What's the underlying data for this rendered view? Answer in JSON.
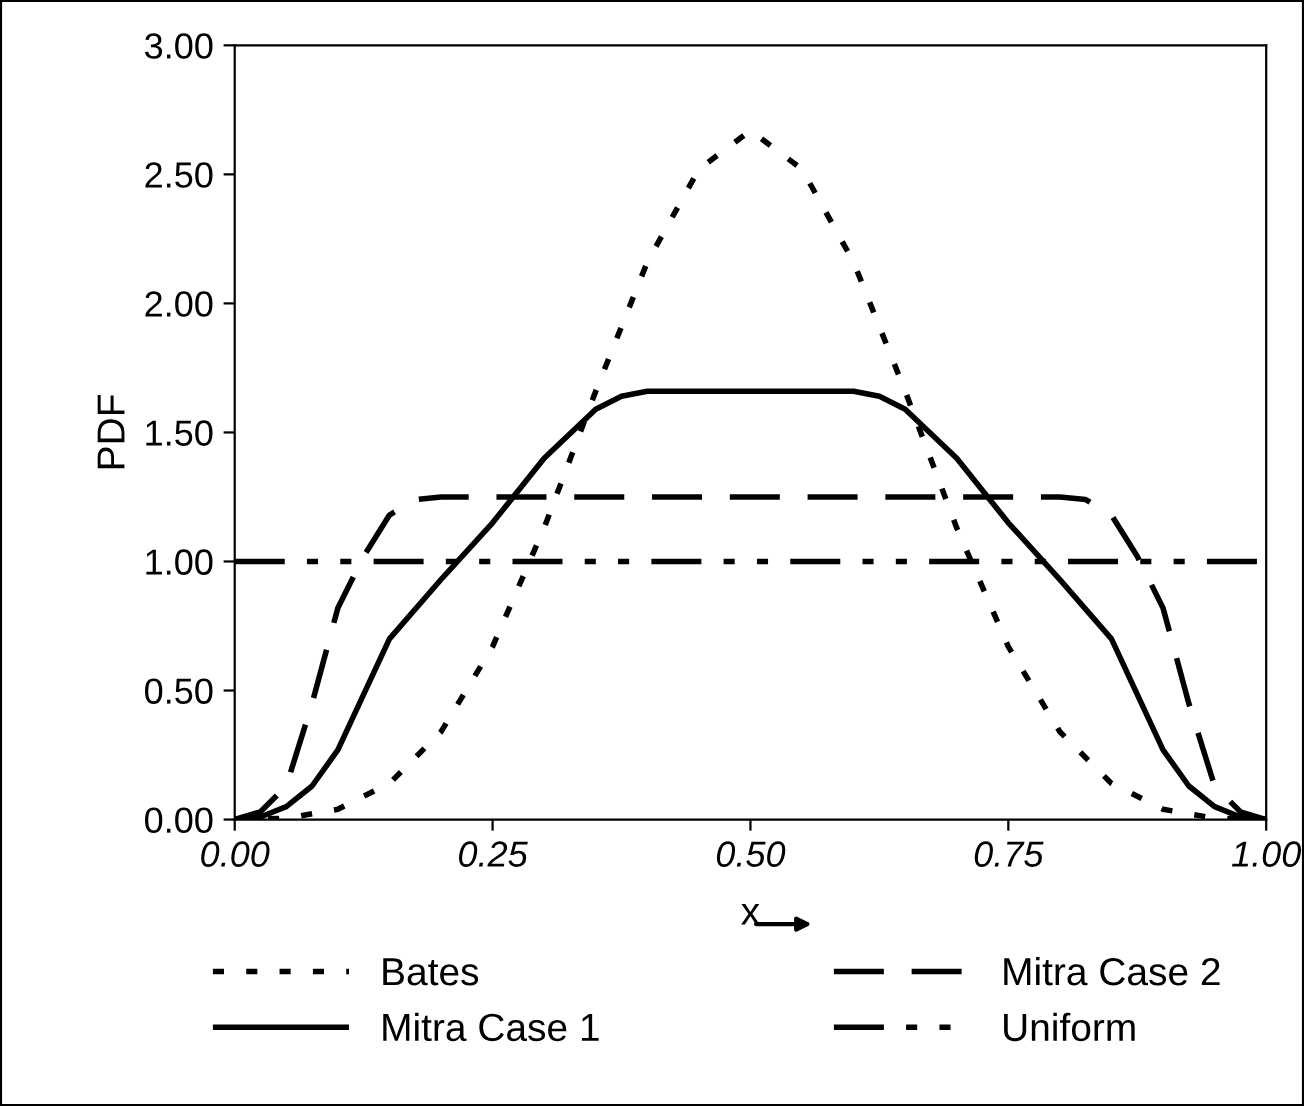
{
  "chart_data": {
    "type": "line",
    "xlabel": "x",
    "ylabel": "PDF",
    "xlim": [
      0,
      1
    ],
    "ylim": [
      0,
      3
    ],
    "xticks": [
      {
        "value": 0,
        "label": "0.00"
      },
      {
        "value": 0.25,
        "label": "0.25"
      },
      {
        "value": 0.5,
        "label": "0.50"
      },
      {
        "value": 0.75,
        "label": "0.75"
      },
      {
        "value": 1,
        "label": "1.00"
      }
    ],
    "yticks": [
      {
        "value": 0,
        "label": "0.00"
      },
      {
        "value": 0.5,
        "label": "0.50"
      },
      {
        "value": 1,
        "label": "1.00"
      },
      {
        "value": 1.5,
        "label": "1.50"
      },
      {
        "value": 2,
        "label": "2.00"
      },
      {
        "value": 2.5,
        "label": "2.50"
      },
      {
        "value": 3,
        "label": "3.00"
      }
    ],
    "grid": false,
    "legend": "bottom",
    "series": [
      {
        "name": "Bates",
        "color": "#000000",
        "line_style": "dotted",
        "x": [
          0,
          0.05,
          0.1,
          0.15,
          0.2,
          0.25,
          0.3,
          0.35,
          0.4,
          0.45,
          0.5,
          0.55,
          0.6,
          0.65,
          0.7,
          0.75,
          0.8,
          0.85,
          0.9,
          0.95,
          1
        ],
        "values": [
          0,
          0.005,
          0.04,
          0.14,
          0.34,
          0.67,
          1.13,
          1.66,
          2.16,
          2.52,
          2.67,
          2.52,
          2.16,
          1.66,
          1.13,
          0.67,
          0.34,
          0.14,
          0.04,
          0.005,
          0
        ]
      },
      {
        "name": "Mitra Case 1",
        "color": "#000000",
        "line_style": "solid",
        "x": [
          0,
          0.025,
          0.05,
          0.075,
          0.1,
          0.15,
          0.2,
          0.25,
          0.3,
          0.35,
          0.375,
          0.4,
          0.6,
          0.625,
          0.65,
          0.7,
          0.75,
          0.8,
          0.85,
          0.9,
          0.925,
          0.95,
          0.975,
          1
        ],
        "values": [
          0,
          0.01,
          0.05,
          0.13,
          0.27,
          0.7,
          0.93,
          1.15,
          1.4,
          1.59,
          1.64,
          1.66,
          1.66,
          1.64,
          1.59,
          1.4,
          1.15,
          0.93,
          0.7,
          0.27,
          0.13,
          0.05,
          0.01,
          0
        ]
      },
      {
        "name": "Mitra Case 2",
        "color": "#000000",
        "line_style": "dashed",
        "x": [
          0,
          0.025,
          0.05,
          0.075,
          0.1,
          0.125,
          0.15,
          0.175,
          0.2,
          0.8,
          0.825,
          0.85,
          0.875,
          0.9,
          0.925,
          0.95,
          0.975,
          1
        ],
        "values": [
          0,
          0.03,
          0.13,
          0.45,
          0.82,
          1.02,
          1.18,
          1.24,
          1.25,
          1.25,
          1.24,
          1.18,
          1.02,
          0.82,
          0.45,
          0.13,
          0.03,
          0
        ]
      },
      {
        "name": "Uniform",
        "color": "#000000",
        "line_style": "dashdot",
        "x": [
          0,
          1
        ],
        "values": [
          1,
          1
        ]
      }
    ]
  }
}
